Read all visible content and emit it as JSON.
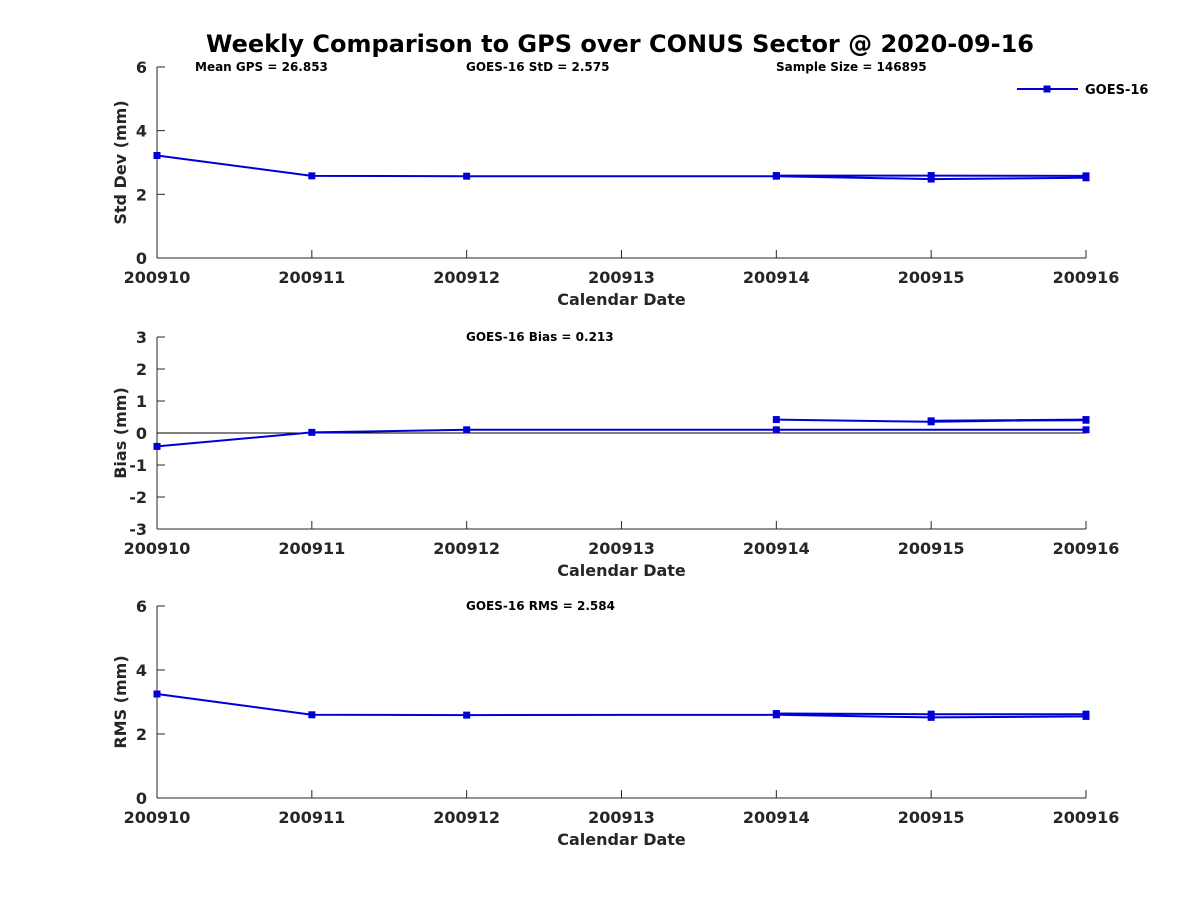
{
  "title": "Weekly Comparison to GPS over CONUS Sector @ 2020-09-16",
  "stats": {
    "mean_gps": "Mean GPS = 26.853",
    "std": "GOES-16 StD = 2.575",
    "sample_size": "Sample Size = 146895",
    "bias": "GOES-16 Bias  = 0.213",
    "rms": "GOES-16 RMS = 2.584"
  },
  "colors": {
    "series": "#0000d6",
    "axis": "#262626",
    "zero_line": "#000000"
  },
  "chart_data": [
    {
      "type": "line",
      "ylabel": "Std Dev (mm)",
      "xlabel": "Calendar Date",
      "x_tick_labels": [
        "200910",
        "200911",
        "200912",
        "200913",
        "200914",
        "200915",
        "200916"
      ],
      "xlim": [
        0,
        6
      ],
      "ylim": [
        0,
        6
      ],
      "y_ticks": [
        0,
        2,
        4,
        6
      ],
      "legend": [
        "GOES-16"
      ],
      "legend_position": "top-right",
      "series": [
        {
          "name": "GOES-16",
          "x": [
            0,
            1,
            2,
            4,
            5,
            6,
            6,
            5,
            4
          ],
          "y": [
            3.22,
            2.58,
            2.57,
            2.57,
            2.48,
            2.52,
            2.58,
            2.59,
            2.59
          ]
        }
      ]
    },
    {
      "type": "line",
      "ylabel": "Bias (mm)",
      "xlabel": "Calendar Date",
      "x_tick_labels": [
        "200910",
        "200911",
        "200912",
        "200913",
        "200914",
        "200915",
        "200916"
      ],
      "xlim": [
        0,
        6
      ],
      "ylim": [
        -3,
        3
      ],
      "y_ticks": [
        -3,
        -2,
        -1,
        0,
        1,
        2,
        3
      ],
      "zero_line": true,
      "series": [
        {
          "name": "GOES-16",
          "x": [
            0,
            1,
            2,
            4,
            6
          ],
          "y": [
            -0.42,
            0.02,
            0.1,
            0.1,
            0.1
          ]
        },
        {
          "name": "GOES-16",
          "x": [
            4,
            5,
            6,
            5,
            6
          ],
          "y": [
            0.42,
            0.35,
            0.42,
            0.38,
            0.4
          ]
        }
      ]
    },
    {
      "type": "line",
      "ylabel": "RMS (mm)",
      "xlabel": "Calendar Date",
      "x_tick_labels": [
        "200910",
        "200911",
        "200912",
        "200913",
        "200914",
        "200915",
        "200916"
      ],
      "xlim": [
        0,
        6
      ],
      "ylim": [
        0,
        6
      ],
      "y_ticks": [
        0,
        2,
        4,
        6
      ],
      "series": [
        {
          "name": "GOES-16",
          "x": [
            0,
            1,
            2,
            4,
            5,
            6,
            6,
            5,
            4
          ],
          "y": [
            3.25,
            2.6,
            2.59,
            2.6,
            2.52,
            2.55,
            2.62,
            2.62,
            2.64
          ]
        }
      ]
    }
  ]
}
